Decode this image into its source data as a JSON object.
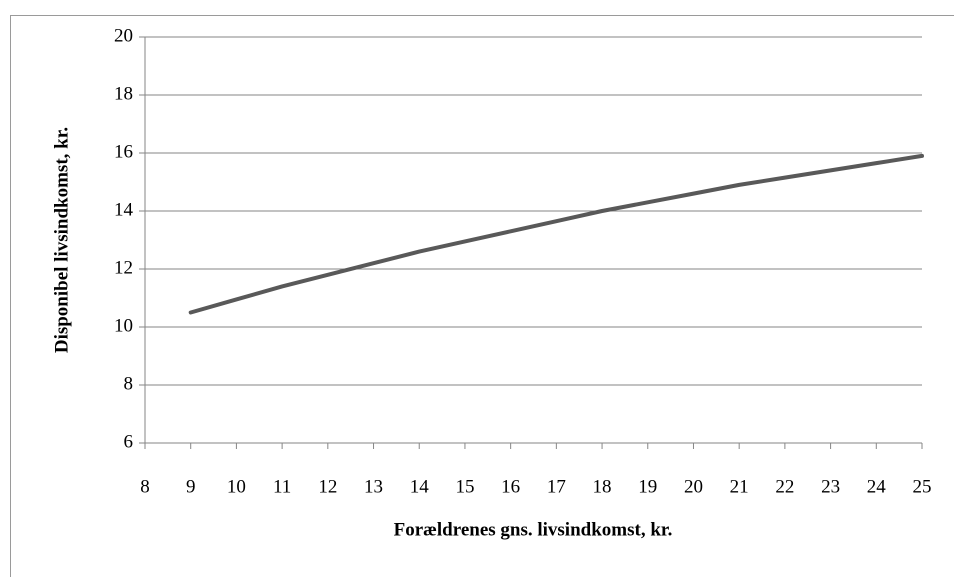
{
  "chart_data": {
    "type": "line",
    "x_label": "Forældrenes gns. livsindkomst, kr.",
    "y_label": "Disponibel livsindkomst, kr.",
    "series": [
      {
        "name": "Disponibel livsindkomst",
        "color": "#595959",
        "x": [
          9,
          10,
          11,
          12,
          13,
          14,
          15,
          16,
          17,
          18,
          19,
          20,
          21,
          22,
          23,
          24,
          25
        ],
        "values": [
          10.5,
          10.95,
          11.4,
          11.8,
          12.2,
          12.6,
          12.95,
          13.3,
          13.65,
          14.0,
          14.3,
          14.6,
          14.9,
          15.15,
          15.4,
          15.65,
          15.9
        ]
      }
    ],
    "xlim": [
      8,
      25
    ],
    "xticks": [
      8,
      9,
      10,
      11,
      12,
      13,
      14,
      15,
      16,
      17,
      18,
      19,
      20,
      21,
      22,
      23,
      24,
      25
    ],
    "ylim": [
      6,
      20
    ],
    "yticks": [
      6,
      8,
      10,
      12,
      14,
      16,
      18,
      20
    ],
    "grid": true
  }
}
